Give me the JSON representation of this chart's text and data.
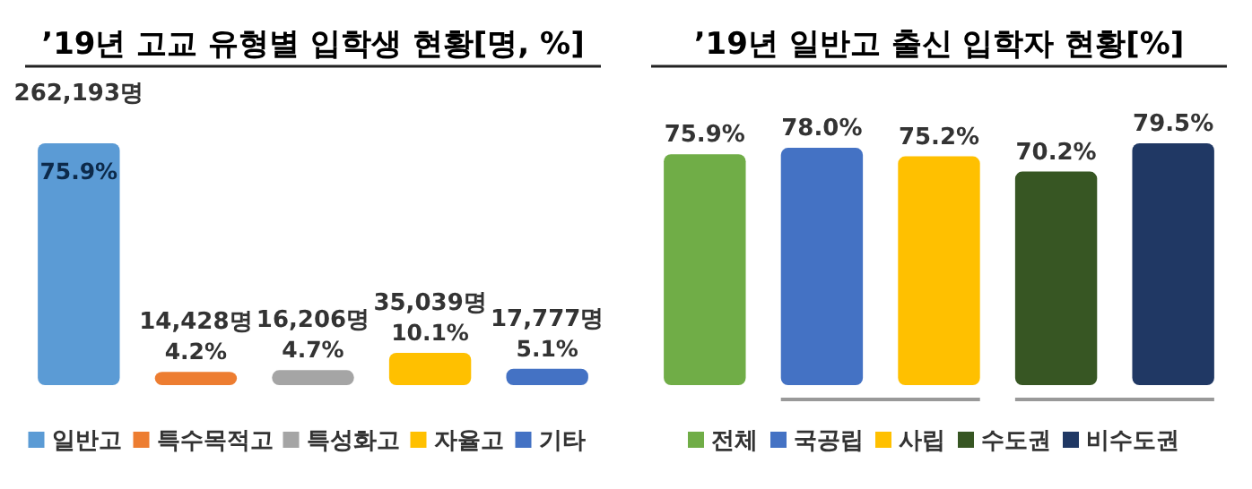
{
  "chart_data": [
    {
      "type": "bar",
      "title": "’19년 고교 유형별 입학생 현황[명, %]",
      "categories": [
        null,
        null,
        null,
        null,
        null
      ],
      "stacked": true,
      "series": [
        {
          "name": "일반고",
          "color": "#5b9bd5",
          "values": [
            262193,
            null,
            null,
            null,
            null
          ],
          "value_labels": [
            "262,193명",
            null,
            null,
            null,
            null
          ]
        },
        {
          "name": "특수목적고",
          "color": "#ed7d31",
          "values": [
            null,
            14428,
            null,
            null,
            null
          ],
          "value_labels": [
            null,
            "14,428명",
            null,
            null,
            null
          ]
        },
        {
          "name": "특성화고",
          "color": "#a5a5a5",
          "values": [
            null,
            null,
            16206,
            null,
            null
          ],
          "value_labels": [
            null,
            null,
            "16,206명",
            null,
            null
          ]
        },
        {
          "name": "자율고",
          "color": "#ffc000",
          "values": [
            null,
            null,
            null,
            35039,
            null
          ],
          "value_labels": [
            null,
            null,
            null,
            "35,039명",
            null
          ]
        },
        {
          "name": "기타",
          "color": "#4472c4",
          "values": [
            null,
            null,
            null,
            null,
            17777
          ],
          "value_labels": [
            null,
            null,
            null,
            null,
            "17,777명"
          ]
        }
      ],
      "annotations": [
        {
          "text": "75.9%",
          "y": 262193
        },
        {
          "text": "4.2%",
          "y": 14428
        },
        {
          "text": "4.7%",
          "y": 16206
        },
        {
          "text": "10.1%",
          "y": 35039
        },
        {
          "text": "5.1%",
          "y": 17777
        }
      ],
      "legend": "bottom"
    },
    {
      "type": "bar",
      "title": "’19년 일반고 출신 입학자 현황[%]",
      "categories": [
        null,
        null,
        null,
        null,
        null
      ],
      "stacked": true,
      "series": [
        {
          "name": "전체",
          "color": "#70ad47",
          "values": [
            75.9,
            null,
            null,
            null,
            null
          ],
          "value_labels": [
            "75.9%",
            null,
            null,
            null,
            null
          ]
        },
        {
          "name": "국공립",
          "color": "#4472c4",
          "values": [
            null,
            78.0,
            null,
            null,
            null
          ],
          "value_labels": [
            null,
            "78.0%",
            null,
            null,
            null
          ]
        },
        {
          "name": "사립",
          "color": "#ffc000",
          "values": [
            null,
            null,
            75.2,
            null,
            null
          ],
          "value_labels": [
            null,
            null,
            "75.2%",
            null,
            null
          ]
        },
        {
          "name": "수도권",
          "color": "#375623",
          "values": [
            null,
            null,
            null,
            70.2,
            null
          ],
          "value_labels": [
            null,
            null,
            null,
            "70.2%",
            null
          ]
        },
        {
          "name": "비수도권",
          "color": "#203864",
          "values": [
            null,
            null,
            null,
            null,
            79.5
          ],
          "value_labels": [
            null,
            null,
            null,
            null,
            "79.5%"
          ]
        }
      ],
      "legend": "bottom"
    }
  ]
}
